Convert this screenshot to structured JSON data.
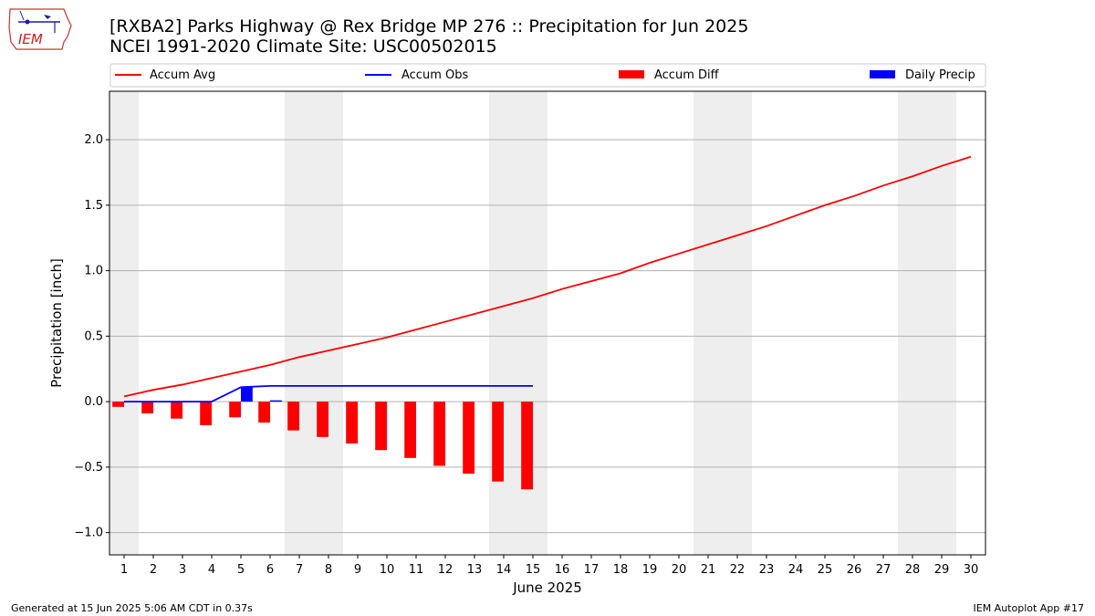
{
  "header": {
    "title_line1": "[RXBA2] Parks Highway @ Rex Bridge MP 276 :: Precipitation for Jun 2025",
    "title_line2": "NCEI 1991-2020 Climate Site: USC00502015"
  },
  "logo": {
    "text": "IEM",
    "icon": "iem-iowa-logo"
  },
  "footer": {
    "left": "Generated at 15 Jun 2025 5:06 AM CDT in 0.37s",
    "right": "IEM Autoplot App #17"
  },
  "colors": {
    "avg": "#ff0000",
    "obs": "#0000ff",
    "diff": "#ff0000",
    "daily": "#0000ff",
    "weekend": "#eeeeee"
  },
  "chart_data": {
    "type": "bar",
    "xlabel": "June 2025",
    "ylabel": "Precipitation [inch]",
    "xlim": [
      0.5,
      30.5
    ],
    "ylim": [
      -1.17,
      2.37
    ],
    "yticks": [
      -1.0,
      -0.5,
      0.0,
      0.5,
      1.0,
      1.5,
      2.0
    ],
    "ytick_labels": [
      "−1.0",
      "−0.5",
      "0.0",
      "0.5",
      "1.0",
      "1.5",
      "2.0"
    ],
    "days": [
      1,
      2,
      3,
      4,
      5,
      6,
      7,
      8,
      9,
      10,
      11,
      12,
      13,
      14,
      15,
      16,
      17,
      18,
      19,
      20,
      21,
      22,
      23,
      24,
      25,
      26,
      27,
      28,
      29,
      30
    ],
    "weekend_spans": [
      [
        0.5,
        1.5
      ],
      [
        6.5,
        8.5
      ],
      [
        13.5,
        15.5
      ],
      [
        20.5,
        22.5
      ],
      [
        27.5,
        29.5
      ]
    ],
    "grid": "horizontal",
    "legend": {
      "position": "top",
      "entries": [
        {
          "label": "Accum Avg",
          "kind": "line",
          "color": "#ff0000"
        },
        {
          "label": "Accum Obs",
          "kind": "line",
          "color": "#0000ff"
        },
        {
          "label": "Accum Diff",
          "kind": "bar",
          "color": "#ff0000"
        },
        {
          "label": "Daily Precip",
          "kind": "bar",
          "color": "#0000ff"
        }
      ]
    },
    "series": [
      {
        "name": "Accum Avg",
        "kind": "line",
        "x": [
          1,
          2,
          3,
          4,
          5,
          6,
          7,
          8,
          9,
          10,
          11,
          12,
          13,
          14,
          15,
          16,
          17,
          18,
          19,
          20,
          21,
          22,
          23,
          24,
          25,
          26,
          27,
          28,
          29,
          30
        ],
        "values": [
          0.04,
          0.09,
          0.13,
          0.18,
          0.23,
          0.28,
          0.34,
          0.39,
          0.44,
          0.49,
          0.55,
          0.61,
          0.67,
          0.73,
          0.79,
          0.86,
          0.92,
          0.98,
          1.06,
          1.13,
          1.2,
          1.27,
          1.34,
          1.42,
          1.5,
          1.57,
          1.65,
          1.72,
          1.8,
          1.87
        ]
      },
      {
        "name": "Accum Obs",
        "kind": "line",
        "x": [
          1,
          2,
          3,
          4,
          5,
          6,
          7,
          8,
          9,
          10,
          11,
          12,
          13,
          14,
          15
        ],
        "values": [
          0.0,
          0.0,
          0.0,
          0.0,
          0.11,
          0.12,
          0.12,
          0.12,
          0.12,
          0.12,
          0.12,
          0.12,
          0.12,
          0.12,
          0.12
        ]
      },
      {
        "name": "Accum Diff",
        "kind": "bar",
        "x": [
          1,
          2,
          3,
          4,
          5,
          6,
          7,
          8,
          9,
          10,
          11,
          12,
          13,
          14,
          15
        ],
        "values": [
          -0.04,
          -0.09,
          -0.13,
          -0.18,
          -0.12,
          -0.16,
          -0.22,
          -0.27,
          -0.32,
          -0.37,
          -0.43,
          -0.49,
          -0.55,
          -0.61,
          -0.67
        ]
      },
      {
        "name": "Daily Precip",
        "kind": "bar",
        "x": [
          5,
          6
        ],
        "values": [
          0.11,
          0.01
        ]
      }
    ]
  }
}
